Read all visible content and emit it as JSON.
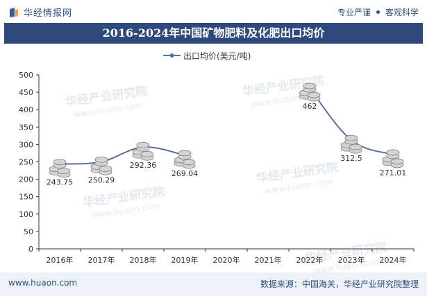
{
  "header": {
    "brand": "华经情报网",
    "slogan_left": "专业严谨",
    "slogan_right": "客观科学"
  },
  "title": "2016-2024年中国矿物肥料及化肥出口均价",
  "footer": {
    "website": "www.huaon.com",
    "source": "数据来源：中国海关，华经产业研究院整理"
  },
  "watermark": {
    "text": "华经产业研究院",
    "url": "www.huaon.com"
  },
  "colors": {
    "line": "#5a6f9c",
    "title_bg": "#30497b",
    "axis": "#333333"
  },
  "chart_data": {
    "type": "line",
    "title": "2016-2024年中国矿物肥料及化肥出口均价",
    "categories": [
      "2016年",
      "2017年",
      "2018年",
      "2019年",
      "2020年",
      "2021年",
      "2022年",
      "2023年",
      "2024年"
    ],
    "series": [
      {
        "name": "出口均价(美元/吨)",
        "values": [
          243.75,
          250.29,
          292.36,
          269.04,
          null,
          null,
          462,
          312.5,
          271.01
        ],
        "labels": [
          "243.75",
          "250.29",
          "292.36",
          "269.04",
          "",
          "",
          "462",
          "312.5",
          "271.01"
        ]
      }
    ],
    "ylim": [
      0,
      500
    ],
    "yticks": [
      0,
      50,
      100,
      150,
      200,
      250,
      300,
      350,
      400,
      450,
      500
    ],
    "legend": "top-center",
    "grid": false
  }
}
